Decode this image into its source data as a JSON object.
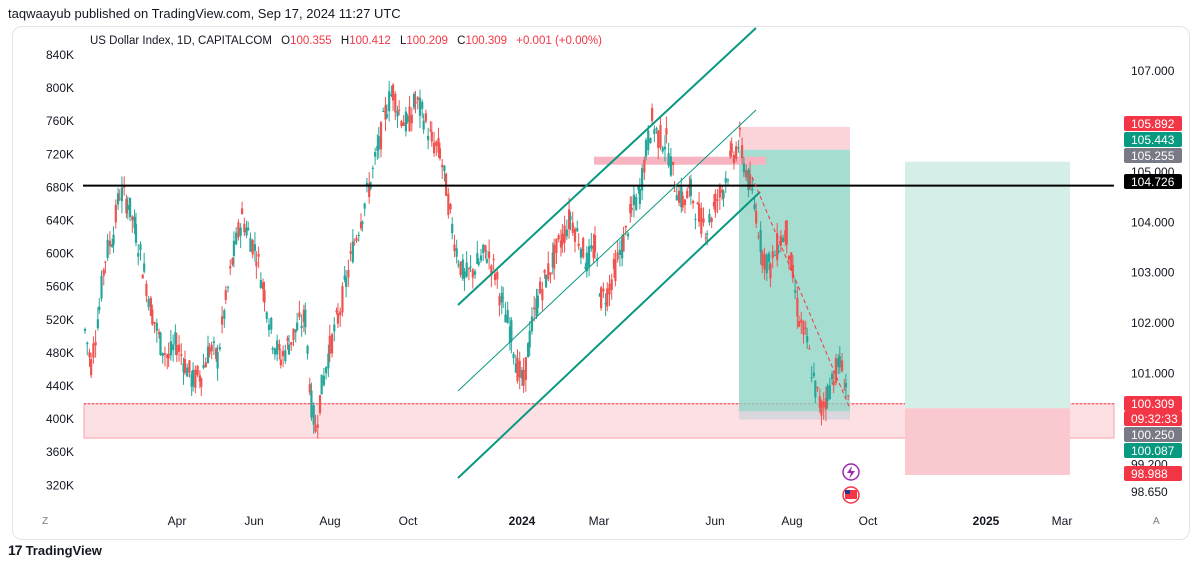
{
  "publisher_line": "taqwaayub published on TradingView.com, Sep 17, 2024 11:27 UTC",
  "legend": {
    "symbol": "US Dollar Index, 1D, CAPITALCOM",
    "o_label": "O",
    "o_value": "100.355",
    "h_label": "H",
    "h_value": "100.412",
    "l_label": "L",
    "l_value": "100.209",
    "c_label": "C",
    "c_value": "100.309",
    "change": "+0.001 (+0.00%)"
  },
  "footer": {
    "brand": "TradingView",
    "left_btn": "Z",
    "right_btn": "A"
  },
  "colors": {
    "up": "#26a69a",
    "down": "#ef5350",
    "line": "#089981",
    "zone_red": "#f7a1a8",
    "zone_green": "#8fd5c5"
  },
  "chart_data": {
    "type": "candlestick",
    "title": "US Dollar Index, 1D, CAPITALCOM",
    "x_tick_labels": [
      "Apr",
      "Jun",
      "Aug",
      "Oct",
      "2024",
      "Mar",
      "Jun",
      "Aug",
      "Oct",
      "2025",
      "Mar"
    ],
    "right_axis": {
      "ticks": [
        "107.000",
        "105.000",
        "104.000",
        "103.000",
        "102.000",
        "101.000",
        "99.200",
        "98.650"
      ],
      "ylim": [
        98.4,
        107.7
      ],
      "price_labels": [
        {
          "value": "105.892",
          "color": "#f23645"
        },
        {
          "value": "105.443",
          "color": "#089981"
        },
        {
          "value": "105.255",
          "color": "#787b86"
        },
        {
          "value": "104.726",
          "color": "#000000"
        },
        {
          "value": "100.309",
          "color": "#f23645"
        },
        {
          "value": "09:32:33",
          "color": "#f23645"
        },
        {
          "value": "100.250",
          "color": "#787b86"
        },
        {
          "value": "100.087",
          "color": "#089981"
        },
        {
          "value": "98.988",
          "color": "#f23645"
        }
      ]
    },
    "left_axis": {
      "ticks": [
        "840K",
        "800K",
        "760K",
        "720K",
        "680K",
        "640K",
        "600K",
        "560K",
        "520K",
        "480K",
        "440K",
        "400K",
        "360K",
        "320K"
      ]
    },
    "series_close_path": [
      [
        0,
        101.85
      ],
      [
        6,
        101.2
      ],
      [
        14,
        102.3
      ],
      [
        20,
        103.3
      ],
      [
        28,
        103.8
      ],
      [
        34,
        104.6
      ],
      [
        42,
        104.4
      ],
      [
        50,
        103.8
      ],
      [
        58,
        103.0
      ],
      [
        66,
        102.2
      ],
      [
        74,
        101.6
      ],
      [
        82,
        101.3
      ],
      [
        90,
        101.6
      ],
      [
        98,
        101.2
      ],
      [
        106,
        100.85
      ],
      [
        114,
        101.0
      ],
      [
        122,
        101.5
      ],
      [
        130,
        101.3
      ],
      [
        138,
        102.4
      ],
      [
        146,
        103.4
      ],
      [
        154,
        104.1
      ],
      [
        160,
        103.8
      ],
      [
        168,
        103.4
      ],
      [
        176,
        102.6
      ],
      [
        184,
        101.7
      ],
      [
        192,
        101.3
      ],
      [
        200,
        101.6
      ],
      [
        208,
        101.9
      ],
      [
        216,
        102.1
      ],
      [
        222,
        100.4
      ],
      [
        226,
        99.9
      ],
      [
        232,
        100.7
      ],
      [
        240,
        101.5
      ],
      [
        248,
        102.1
      ],
      [
        256,
        102.8
      ],
      [
        264,
        103.6
      ],
      [
        272,
        104.2
      ],
      [
        280,
        104.8
      ],
      [
        288,
        105.5
      ],
      [
        296,
        106.3
      ],
      [
        302,
        106.6
      ],
      [
        308,
        106.2
      ],
      [
        316,
        105.9
      ],
      [
        324,
        106.4
      ],
      [
        332,
        106.1
      ],
      [
        340,
        105.6
      ],
      [
        348,
        105.4
      ],
      [
        354,
        104.7
      ],
      [
        360,
        103.9
      ],
      [
        366,
        103.3
      ],
      [
        372,
        102.9
      ],
      [
        378,
        103.0
      ],
      [
        386,
        103.2
      ],
      [
        394,
        103.4
      ],
      [
        402,
        103.0
      ],
      [
        410,
        102.3
      ],
      [
        418,
        101.8
      ],
      [
        424,
        101.1
      ],
      [
        430,
        100.8
      ],
      [
        436,
        101.7
      ],
      [
        444,
        102.5
      ],
      [
        452,
        102.9
      ],
      [
        460,
        103.3
      ],
      [
        468,
        103.7
      ],
      [
        476,
        104.1
      ],
      [
        484,
        103.7
      ],
      [
        492,
        103.2
      ],
      [
        500,
        103.5
      ],
      [
        506,
        102.5
      ],
      [
        512,
        102.6
      ],
      [
        520,
        103.1
      ],
      [
        528,
        103.6
      ],
      [
        536,
        104.2
      ],
      [
        544,
        104.6
      ],
      [
        550,
        105.4
      ],
      [
        556,
        106.0
      ],
      [
        562,
        105.7
      ],
      [
        570,
        105.6
      ],
      [
        578,
        104.8
      ],
      [
        586,
        104.4
      ],
      [
        594,
        104.6
      ],
      [
        602,
        104.1
      ],
      [
        610,
        103.9
      ],
      [
        618,
        104.4
      ],
      [
        626,
        104.7
      ],
      [
        634,
        105.3
      ],
      [
        642,
        105.6
      ],
      [
        646,
        105.2
      ],
      [
        652,
        104.7
      ],
      [
        658,
        104.2
      ],
      [
        664,
        103.4
      ],
      [
        672,
        103.1
      ],
      [
        680,
        103.6
      ],
      [
        688,
        103.8
      ],
      [
        694,
        102.9
      ],
      [
        700,
        102.1
      ],
      [
        708,
        101.6
      ],
      [
        716,
        100.7
      ],
      [
        722,
        100.3
      ],
      [
        728,
        100.6
      ],
      [
        734,
        101.0
      ],
      [
        740,
        101.2
      ],
      [
        746,
        100.8
      ],
      [
        750,
        100.31
      ]
    ]
  }
}
